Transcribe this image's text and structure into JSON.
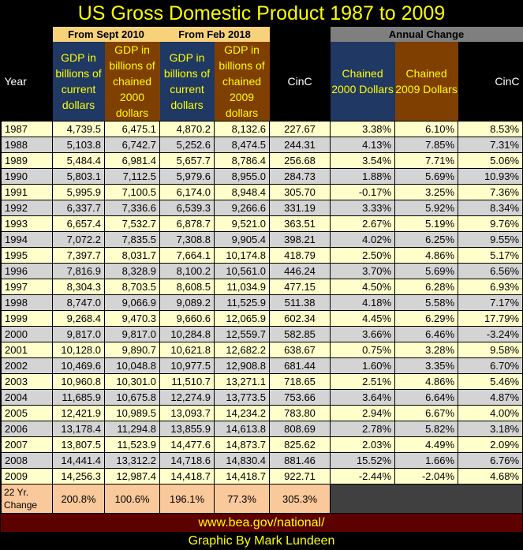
{
  "title": "US Gross Domestic Product 1987 to 2009",
  "group_headers": {
    "from_sept_2010": "From Sept 2010",
    "from_feb_2018": "From Feb 2018",
    "annual_change": "Annual Change"
  },
  "columns": {
    "year": "Year",
    "gdp_current_2010": "GDP in billions of current dollars",
    "gdp_chained_2000": "GDP in billions of chained 2000 dollars",
    "gdp_current_2018": "GDP in billions of current dollars",
    "gdp_chained_2009": "GDP in billions of chained 2009 dollars",
    "cinc": "CinC",
    "chg_chained_2000": "Chained 2000 Dollars",
    "chg_chained_2009": "Chained 2009 Dollars",
    "chg_cinc": "CinC"
  },
  "rows": [
    [
      "1987",
      "4,739.5",
      "6,475.1",
      "4,870.2",
      "8,132.6",
      "227.67",
      "3.38%",
      "6.10%",
      "8.53%"
    ],
    [
      "1988",
      "5,103.8",
      "6,742.7",
      "5,252.6",
      "8,474.5",
      "244.31",
      "4.13%",
      "7.85%",
      "7.31%"
    ],
    [
      "1989",
      "5,484.4",
      "6,981.4",
      "5,657.7",
      "8,786.4",
      "256.68",
      "3.54%",
      "7.71%",
      "5.06%"
    ],
    [
      "1990",
      "5,803.1",
      "7,112.5",
      "5,979.6",
      "8,955.0",
      "284.73",
      "1.88%",
      "5.69%",
      "10.93%"
    ],
    [
      "1991",
      "5,995.9",
      "7,100.5",
      "6,174.0",
      "8,948.4",
      "305.70",
      "-0.17%",
      "3.25%",
      "7.36%"
    ],
    [
      "1992",
      "6,337.7",
      "7,336.6",
      "6,539.3",
      "9,266.6",
      "331.19",
      "3.33%",
      "5.92%",
      "8.34%"
    ],
    [
      "1993",
      "6,657.4",
      "7,532.7",
      "6,878.7",
      "9,521.0",
      "363.51",
      "2.67%",
      "5.19%",
      "9.76%"
    ],
    [
      "1994",
      "7,072.2",
      "7,835.5",
      "7,308.8",
      "9,905.4",
      "398.21",
      "4.02%",
      "6.25%",
      "9.55%"
    ],
    [
      "1995",
      "7,397.7",
      "8,031.7",
      "7,664.1",
      "10,174.8",
      "418.79",
      "2.50%",
      "4.86%",
      "5.17%"
    ],
    [
      "1996",
      "7,816.9",
      "8,328.9",
      "8,100.2",
      "10,561.0",
      "446.24",
      "3.70%",
      "5.69%",
      "6.56%"
    ],
    [
      "1997",
      "8,304.3",
      "8,703.5",
      "8,608.5",
      "11,034.9",
      "477.15",
      "4.50%",
      "6.28%",
      "6.93%"
    ],
    [
      "1998",
      "8,747.0",
      "9,066.9",
      "9,089.2",
      "11,525.9",
      "511.38",
      "4.18%",
      "5.58%",
      "7.17%"
    ],
    [
      "1999",
      "9,268.4",
      "9,470.3",
      "9,660.6",
      "12,065.9",
      "602.34",
      "4.45%",
      "6.29%",
      "17.79%"
    ],
    [
      "2000",
      "9,817.0",
      "9,817.0",
      "10,284.8",
      "12,559.7",
      "582.85",
      "3.66%",
      "6.46%",
      "-3.24%"
    ],
    [
      "2001",
      "10,128.0",
      "9,890.7",
      "10,621.8",
      "12,682.2",
      "638.67",
      "0.75%",
      "3.28%",
      "9.58%"
    ],
    [
      "2002",
      "10,469.6",
      "10,048.8",
      "10,977.5",
      "12,908.8",
      "681.44",
      "1.60%",
      "3.35%",
      "6.70%"
    ],
    [
      "2003",
      "10,960.8",
      "10,301.0",
      "11,510.7",
      "13,271.1",
      "718.65",
      "2.51%",
      "4.86%",
      "5.46%"
    ],
    [
      "2004",
      "11,685.9",
      "10,675.8",
      "12,274.9",
      "13,773.5",
      "753.66",
      "3.64%",
      "6.64%",
      "4.87%"
    ],
    [
      "2005",
      "12,421.9",
      "10,989.5",
      "13,093.7",
      "14,234.2",
      "783.80",
      "2.94%",
      "6.67%",
      "4.00%"
    ],
    [
      "2006",
      "13,178.4",
      "11,294.8",
      "13,855.9",
      "14,613.8",
      "808.69",
      "2.78%",
      "5.82%",
      "3.18%"
    ],
    [
      "2007",
      "13,807.5",
      "11,523.9",
      "14,477.6",
      "14,873.7",
      "825.62",
      "2.03%",
      "4.49%",
      "2.09%"
    ],
    [
      "2008",
      "14,441.4",
      "13,312.2",
      "14,718.6",
      "14,830.4",
      "881.46",
      "15.52%",
      "1.66%",
      "6.76%"
    ],
    [
      "2009",
      "14,256.3",
      "12,987.4",
      "14,418.7",
      "14,418.7",
      "922.71",
      "-2.44%",
      "-2.04%",
      "4.68%"
    ]
  ],
  "change_row": {
    "label": "22 Yr. Change",
    "values": [
      "200.8%",
      "100.6%",
      "196.1%",
      "77.3%",
      "305.3%"
    ]
  },
  "source": "www.bea.gov/national/",
  "credit": "Graphic By Mark Lundeen",
  "colors": {
    "title_text": "#ffff00",
    "header_gold": "#f7d27a",
    "header_blue": "#1f3864",
    "header_brown": "#7f3f00",
    "row_light_yellow": "#ffffcc",
    "row_gray": "#d4d4d4",
    "change_orange": "#f9c89b",
    "footer_red": "#5c0000"
  }
}
